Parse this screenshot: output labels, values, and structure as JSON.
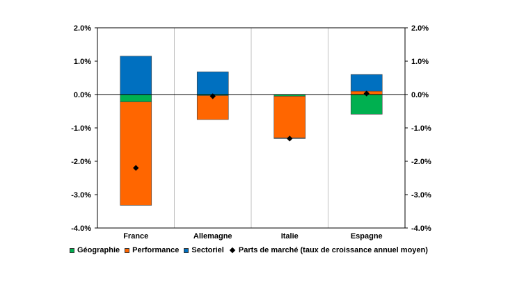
{
  "chart_data": {
    "type": "bar",
    "stacked": true,
    "categories": [
      "France",
      "Allemagne",
      "Italie",
      "Espagne"
    ],
    "series": [
      {
        "name": "Géographie",
        "color": "#00b050",
        "values": [
          -0.22,
          -0.03,
          -0.05,
          -0.59
        ]
      },
      {
        "name": "Performance",
        "color": "#ff6600",
        "values": [
          -3.1,
          -0.72,
          -1.25,
          0.1
        ]
      },
      {
        "name": "Sectoriel",
        "color": "#0070c0",
        "values": [
          1.15,
          0.68,
          -0.02,
          0.5
        ]
      }
    ],
    "markers": {
      "name": "Parts de marché (taux de croissance annuel moyen)",
      "color": "#000000",
      "values": [
        -2.2,
        -0.05,
        -1.32,
        0.03
      ]
    },
    "ylim": [
      -4.0,
      2.0
    ],
    "yticks": [
      "2.0%",
      "1.0%",
      "0.0%",
      "-1.0%",
      "-2.0%",
      "-3.0%",
      "-4.0%"
    ],
    "ytick_values": [
      2,
      1,
      0,
      -1,
      -2,
      -3,
      -4
    ],
    "secondary_axis": true,
    "grid": "vertical-category-separators",
    "legend_position": "bottom",
    "title": "",
    "xlabel": "",
    "ylabel": ""
  }
}
